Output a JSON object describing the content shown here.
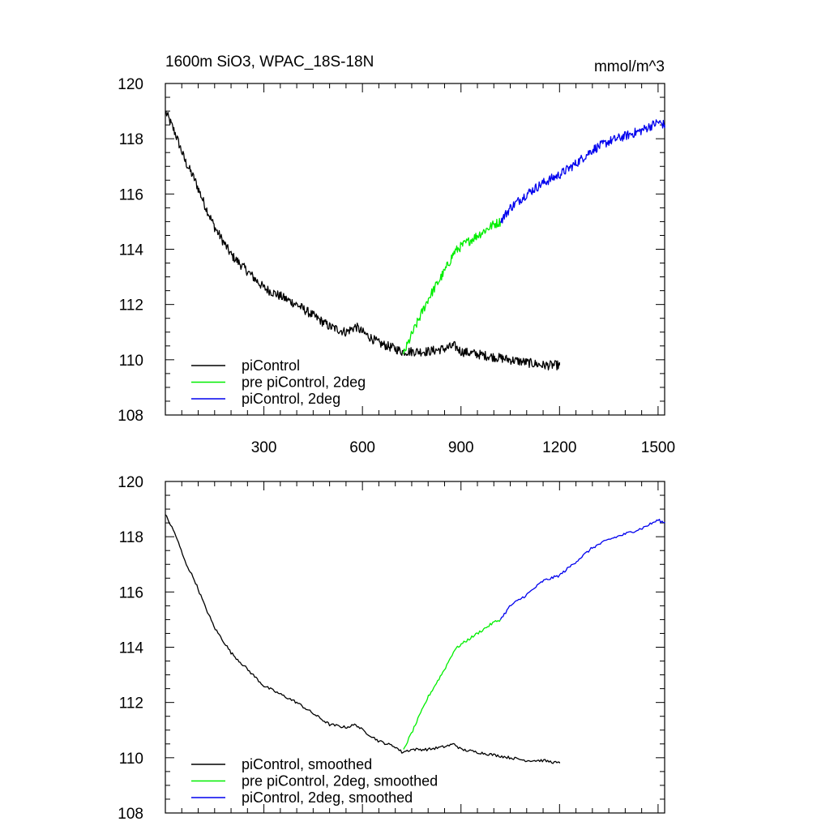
{
  "figure": {
    "title_left": "1600m SiO3, WPAC_18S-18N",
    "title_right": "mmol/m^3"
  },
  "chart_data": [
    {
      "type": "line",
      "panel": "top",
      "xlim": [
        0,
        1520
      ],
      "ylim": [
        108,
        120
      ],
      "xticks": [
        300,
        600,
        900,
        1200,
        1500
      ],
      "xtick_labels": [
        "300",
        "600",
        "900",
        "1200",
        "1500"
      ],
      "yticks": [
        108,
        110,
        112,
        114,
        116,
        118,
        120
      ],
      "ytick_labels": [
        "108",
        "110",
        "112",
        "114",
        "116",
        "118",
        "120"
      ],
      "legend_position": "bottom-left",
      "noisy": true,
      "series": [
        {
          "name": "piControl",
          "color": "#000000",
          "x": [
            0,
            30,
            60,
            90,
            120,
            150,
            200,
            250,
            300,
            350,
            400,
            450,
            500,
            550,
            580,
            600,
            650,
            700,
            720,
            750,
            800,
            850,
            880,
            900,
            950,
            1000,
            1050,
            1100,
            1150,
            1200
          ],
          "y": [
            119.0,
            118.2,
            117.2,
            116.5,
            115.6,
            114.8,
            113.8,
            113.2,
            112.6,
            112.3,
            112.0,
            111.6,
            111.2,
            111.0,
            111.2,
            111.0,
            110.6,
            110.4,
            110.3,
            110.3,
            110.3,
            110.4,
            110.5,
            110.3,
            110.2,
            110.1,
            110.0,
            109.9,
            109.8,
            109.8
          ]
        },
        {
          "name": "pre piControl, 2deg",
          "color": "#00ee00",
          "x": [
            725,
            750,
            800,
            850,
            880,
            900,
            950,
            1000,
            1020
          ],
          "y": [
            110.2,
            110.9,
            112.2,
            113.2,
            113.9,
            114.1,
            114.5,
            114.9,
            115.0
          ]
        },
        {
          "name": "piControl, 2deg",
          "color": "#0000ee",
          "x": [
            1020,
            1050,
            1100,
            1150,
            1200,
            1250,
            1300,
            1350,
            1400,
            1450,
            1500,
            1520
          ],
          "y": [
            115.0,
            115.5,
            116.0,
            116.4,
            116.7,
            117.1,
            117.6,
            117.9,
            118.1,
            118.3,
            118.6,
            118.5
          ]
        }
      ]
    },
    {
      "type": "line",
      "panel": "bottom",
      "xlim": [
        0,
        1520
      ],
      "ylim": [
        108,
        120
      ],
      "xticks": [
        300,
        600,
        900,
        1200,
        1500
      ],
      "xtick_labels": [],
      "yticks": [
        108,
        110,
        112,
        114,
        116,
        118,
        120
      ],
      "ytick_labels": [
        "108",
        "110",
        "112",
        "114",
        "116",
        "118",
        "120"
      ],
      "legend_position": "bottom-left",
      "noisy": false,
      "series": [
        {
          "name": "piControl, smoothed",
          "color": "#000000",
          "x": [
            0,
            30,
            60,
            90,
            120,
            150,
            200,
            250,
            300,
            350,
            400,
            450,
            500,
            550,
            580,
            600,
            650,
            700,
            720,
            750,
            800,
            850,
            880,
            900,
            950,
            1000,
            1050,
            1100,
            1150,
            1200
          ],
          "y": [
            118.8,
            118.1,
            117.1,
            116.4,
            115.5,
            114.7,
            113.8,
            113.2,
            112.6,
            112.3,
            112.0,
            111.6,
            111.2,
            111.1,
            111.2,
            111.0,
            110.6,
            110.4,
            110.2,
            110.3,
            110.3,
            110.4,
            110.5,
            110.3,
            110.2,
            110.1,
            110.0,
            109.9,
            109.9,
            109.8
          ]
        },
        {
          "name": "pre piControl, 2deg, smoothed",
          "color": "#00ee00",
          "x": [
            725,
            750,
            800,
            850,
            880,
            900,
            950,
            1000,
            1020
          ],
          "y": [
            110.3,
            110.9,
            112.2,
            113.2,
            113.9,
            114.1,
            114.5,
            114.9,
            115.0
          ]
        },
        {
          "name": "piControl, 2deg, smoothed",
          "color": "#0000ee",
          "x": [
            1020,
            1050,
            1100,
            1150,
            1200,
            1250,
            1300,
            1350,
            1400,
            1450,
            1500,
            1520
          ],
          "y": [
            115.0,
            115.5,
            115.9,
            116.4,
            116.6,
            117.1,
            117.6,
            117.9,
            118.1,
            118.3,
            118.6,
            118.5
          ]
        }
      ]
    }
  ]
}
